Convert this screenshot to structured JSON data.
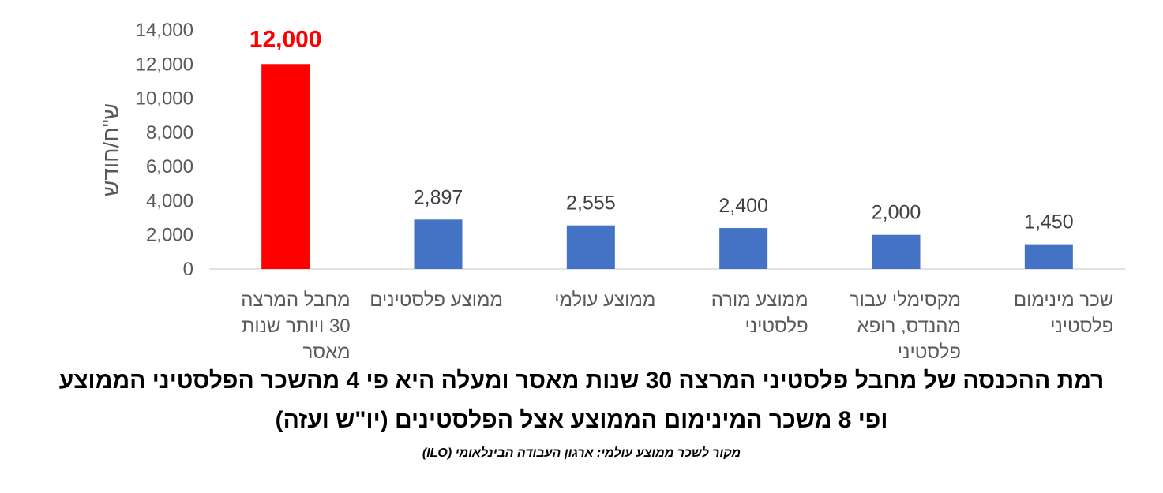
{
  "chart_data": {
    "type": "bar",
    "categories": [
      [
        "מחבל המרצה",
        "30 ויותר שנות",
        "מאסר"
      ],
      [
        "ממוצע פלסטינים"
      ],
      [
        "ממוצע עולמי"
      ],
      [
        "ממוצע מורה",
        "פלסטיני"
      ],
      [
        "מקסימלי עבור",
        "מהנדס, רופא",
        "פלסטיני"
      ],
      [
        "שכר מינימום",
        "פלסטיני"
      ]
    ],
    "values": [
      12000,
      2897,
      2555,
      2400,
      2000,
      1450
    ],
    "value_labels": [
      "12,000",
      "2,897",
      "2,555",
      "2,400",
      "2,000",
      "1,450"
    ],
    "highlight_index": 0,
    "colors": {
      "bar": "#4472c4",
      "highlight": "#ff0000"
    },
    "ylabel": "ש\"ח/חודש",
    "ylim": [
      0,
      14000
    ],
    "yticks": [
      0,
      2000,
      4000,
      6000,
      8000,
      10000,
      12000,
      14000
    ],
    "ytick_labels": [
      "0",
      "2,000",
      "4,000",
      "6,000",
      "8,000",
      "10,000",
      "12,000",
      "14,000"
    ],
    "grid": false,
    "legend": "none"
  },
  "title_line1": "רמת ההכנסה של מחבל פלסטיני המרצה 30 שנות מאסר ומעלה היא פי 4 מהשכר הפלסטיני הממוצע",
  "title_line2": "ופי 8 משכר המינימום הממוצע אצל הפלסטינים (יו\"ש ועזה)",
  "source_note": "מקור לשכר ממוצע עולמי: ארגון העבודה הבינלאומי (ILO)"
}
